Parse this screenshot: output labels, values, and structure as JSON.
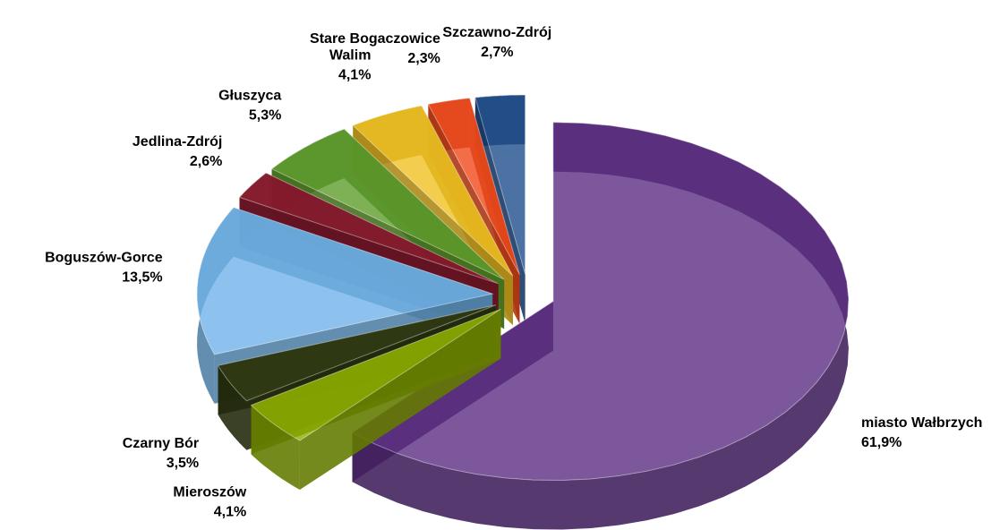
{
  "chart_data": {
    "type": "pie",
    "labels": [
      "miasto Wałbrzych",
      "Mieroszów",
      "Czarny Bór",
      "Boguszów-Gorce",
      "Jedlina-Zdrój",
      "Głuszyca",
      "Walim",
      "Stare Bogaczowice",
      "Szczawno-Zdrój"
    ],
    "values": [
      61.9,
      4.1,
      3.5,
      13.5,
      2.6,
      5.3,
      4.1,
      2.3,
      2.7
    ],
    "value_labels": [
      "61,9%",
      "4,1%",
      "3,5%",
      "13,5%",
      "2,6%",
      "5,3%",
      "4,1%",
      "2,3%",
      "2,7%"
    ],
    "colors": [
      "#5b2d82",
      "#8cac00",
      "#2f3a10",
      "#6fb3e8",
      "#8b1a2e",
      "#5e9c2a",
      "#f0c020",
      "#f04a1a",
      "#1f4e8c"
    ]
  }
}
